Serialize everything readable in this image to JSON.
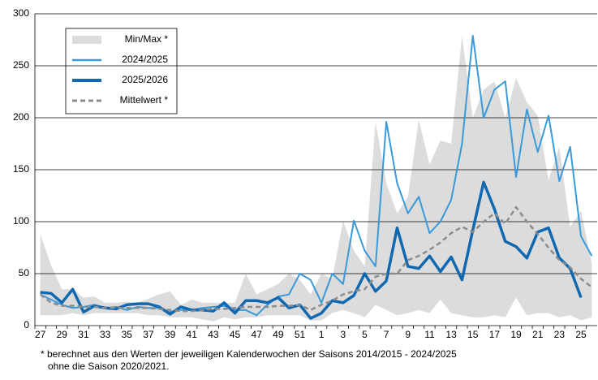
{
  "chart_data": {
    "type": "line",
    "categories": [
      "27",
      null,
      "29",
      null,
      "31",
      null,
      "33",
      null,
      "35",
      null,
      "37",
      null,
      "39",
      null,
      "41",
      null,
      "43",
      null,
      "45",
      null,
      "47",
      null,
      "49",
      null,
      "51",
      null,
      "1",
      null,
      "3",
      null,
      "5",
      null,
      "7",
      null,
      "9",
      null,
      "11",
      null,
      "13",
      null,
      "15",
      null,
      "17",
      null,
      "19",
      null,
      "21",
      null,
      "23",
      null,
      "25",
      null
    ],
    "band": {
      "name": "Min/Max *",
      "color": "#dcdcdc",
      "lower": [
        10,
        10,
        10,
        12,
        10,
        12,
        12,
        12,
        12,
        12,
        10,
        10,
        8,
        8,
        8,
        6,
        4,
        8,
        6,
        8,
        8,
        10,
        10,
        10,
        10,
        5,
        5,
        12,
        15,
        12,
        8,
        20,
        15,
        10,
        12,
        15,
        12,
        25,
        12,
        10,
        8,
        8,
        10,
        8,
        27,
        10,
        12,
        12,
        8,
        10,
        5,
        8
      ],
      "upper": [
        88,
        58,
        35,
        35,
        27,
        28,
        22,
        22,
        23,
        22,
        26,
        30,
        33,
        20,
        25,
        22,
        22,
        22,
        22,
        50,
        30,
        35,
        40,
        50,
        44,
        30,
        50,
        45,
        101,
        72,
        57,
        196,
        137,
        108,
        124,
        198,
        155,
        178,
        175,
        279,
        200,
        227,
        235,
        200,
        238,
        215,
        202,
        140,
        172,
        95,
        110,
        60
      ]
    },
    "series": [
      {
        "name": "2024/2025",
        "color": "#3a9ad9",
        "line_style": "thin",
        "values": [
          30,
          25,
          20,
          17,
          18,
          20,
          17,
          18,
          15,
          18,
          17,
          17,
          13,
          15,
          15,
          17,
          18,
          19,
          15,
          15,
          10,
          20,
          28,
          30,
          50,
          44,
          22,
          50,
          40,
          101,
          72,
          57,
          196,
          137,
          108,
          124,
          89,
          100,
          121,
          175,
          279,
          200,
          227,
          235,
          143,
          208,
          167,
          202,
          139,
          172,
          86,
          67
        ]
      },
      {
        "name": "2025/2026",
        "color": "#1069b0",
        "line_style": "thick",
        "values": [
          32,
          31,
          22,
          35,
          13,
          19,
          17,
          16,
          20,
          21,
          21,
          18,
          11,
          18,
          15,
          15,
          14,
          22,
          12,
          24,
          24,
          22,
          27,
          17,
          20,
          7,
          12,
          24,
          22,
          29,
          50,
          33,
          43,
          94,
          57,
          55,
          67,
          52,
          66,
          44,
          92,
          138,
          112,
          81,
          76,
          65,
          90,
          94,
          65,
          55,
          27,
          null
        ]
      },
      {
        "name": "Mittelwert *",
        "color": "#8c8c8c",
        "line_style": "dashed",
        "values": [
          30,
          22,
          19,
          19,
          18,
          18,
          17,
          17,
          17,
          17,
          17,
          16,
          15,
          14,
          14,
          15,
          16,
          16,
          17,
          18,
          18,
          18,
          19,
          19,
          20,
          15,
          20,
          24,
          30,
          33,
          35,
          47,
          50,
          50,
          63,
          67,
          73,
          80,
          89,
          95,
          90,
          100,
          108,
          98,
          114,
          100,
          88,
          75,
          63,
          56,
          45,
          37
        ]
      }
    ],
    "ylim": [
      0,
      300
    ],
    "yticks": [
      0,
      50,
      100,
      150,
      200,
      250,
      300
    ],
    "grid": true,
    "notes": [
      "* berechnet aus den Werten der jeweiligen Kalenderwochen  der Saisons 2014/2015  - 2024/2025",
      "ohne die Saison 2020/2021."
    ]
  }
}
